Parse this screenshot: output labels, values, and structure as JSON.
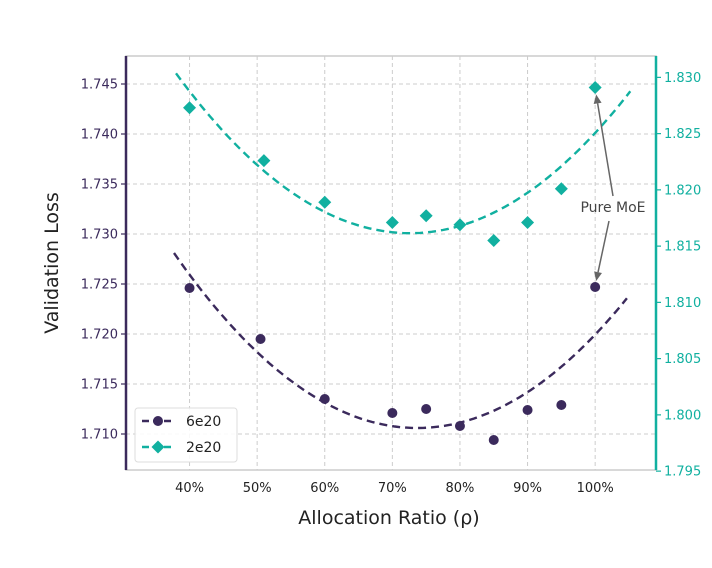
{
  "chart_data": {
    "type": "scatter",
    "title": "",
    "xlabel": "Allocation Ratio (ρ)",
    "ylabel": "Validation Loss",
    "xlim": [
      30.6,
      109.0
    ],
    "ylim_left": [
      1.7064,
      1.7478
    ],
    "ylim_right": [
      1.7951,
      1.8319
    ],
    "x_ticks": [
      40,
      50,
      60,
      70,
      80,
      90,
      100
    ],
    "x_tick_labels": [
      "40%",
      "50%",
      "60%",
      "70%",
      "80%",
      "90%",
      "100%"
    ],
    "y_left_ticks": [
      1.71,
      1.715,
      1.72,
      1.725,
      1.73,
      1.735,
      1.74,
      1.745
    ],
    "y_left_tick_labels": [
      "1.710",
      "1.715",
      "1.720",
      "1.725",
      "1.730",
      "1.735",
      "1.740",
      "1.745"
    ],
    "y_right_ticks": [
      1.795,
      1.8,
      1.805,
      1.81,
      1.815,
      1.82,
      1.825,
      1.83
    ],
    "y_right_tick_labels": [
      "1.795",
      "1.800",
      "1.805",
      "1.810",
      "1.815",
      "1.820",
      "1.825",
      "1.830"
    ],
    "grid": true,
    "legend_position": "lower-left",
    "series": [
      {
        "name": "6e20",
        "axis": "left",
        "marker": "circle",
        "color": "#3b2a5c",
        "x": [
          40,
          50.5,
          60,
          70,
          75,
          80,
          85,
          90,
          95,
          100
        ],
        "values": [
          1.7246,
          1.7195,
          1.7135,
          1.7121,
          1.7125,
          1.7108,
          1.7094,
          1.7124,
          1.7129,
          1.7247
        ],
        "fit": {
          "type": "quadratic",
          "vertex_x": 73.7,
          "vertex_y": 1.7106,
          "a": 1.35e-05,
          "x_range": [
            37.7,
            104.7
          ]
        }
      },
      {
        "name": "2e20",
        "axis": "right",
        "marker": "diamond",
        "color": "#11b0a0",
        "x": [
          40,
          51,
          60,
          70,
          75,
          80,
          85,
          90,
          95,
          100
        ],
        "values": [
          1.8273,
          1.8226,
          1.8189,
          1.8171,
          1.8177,
          1.8169,
          1.8155,
          1.8171,
          1.8201,
          1.8291
        ],
        "fit": {
          "type": "quadratic",
          "vertex_x": 72.6,
          "vertex_y": 1.81615,
          "a": 1.187e-05,
          "x_range": [
            38.0,
            105.2
          ]
        }
      }
    ],
    "annotations": [
      {
        "text": "Pure MoE",
        "targets": [
          {
            "series": "2e20",
            "x": 100
          },
          {
            "series": "6e20",
            "x": 100
          }
        ]
      }
    ]
  }
}
